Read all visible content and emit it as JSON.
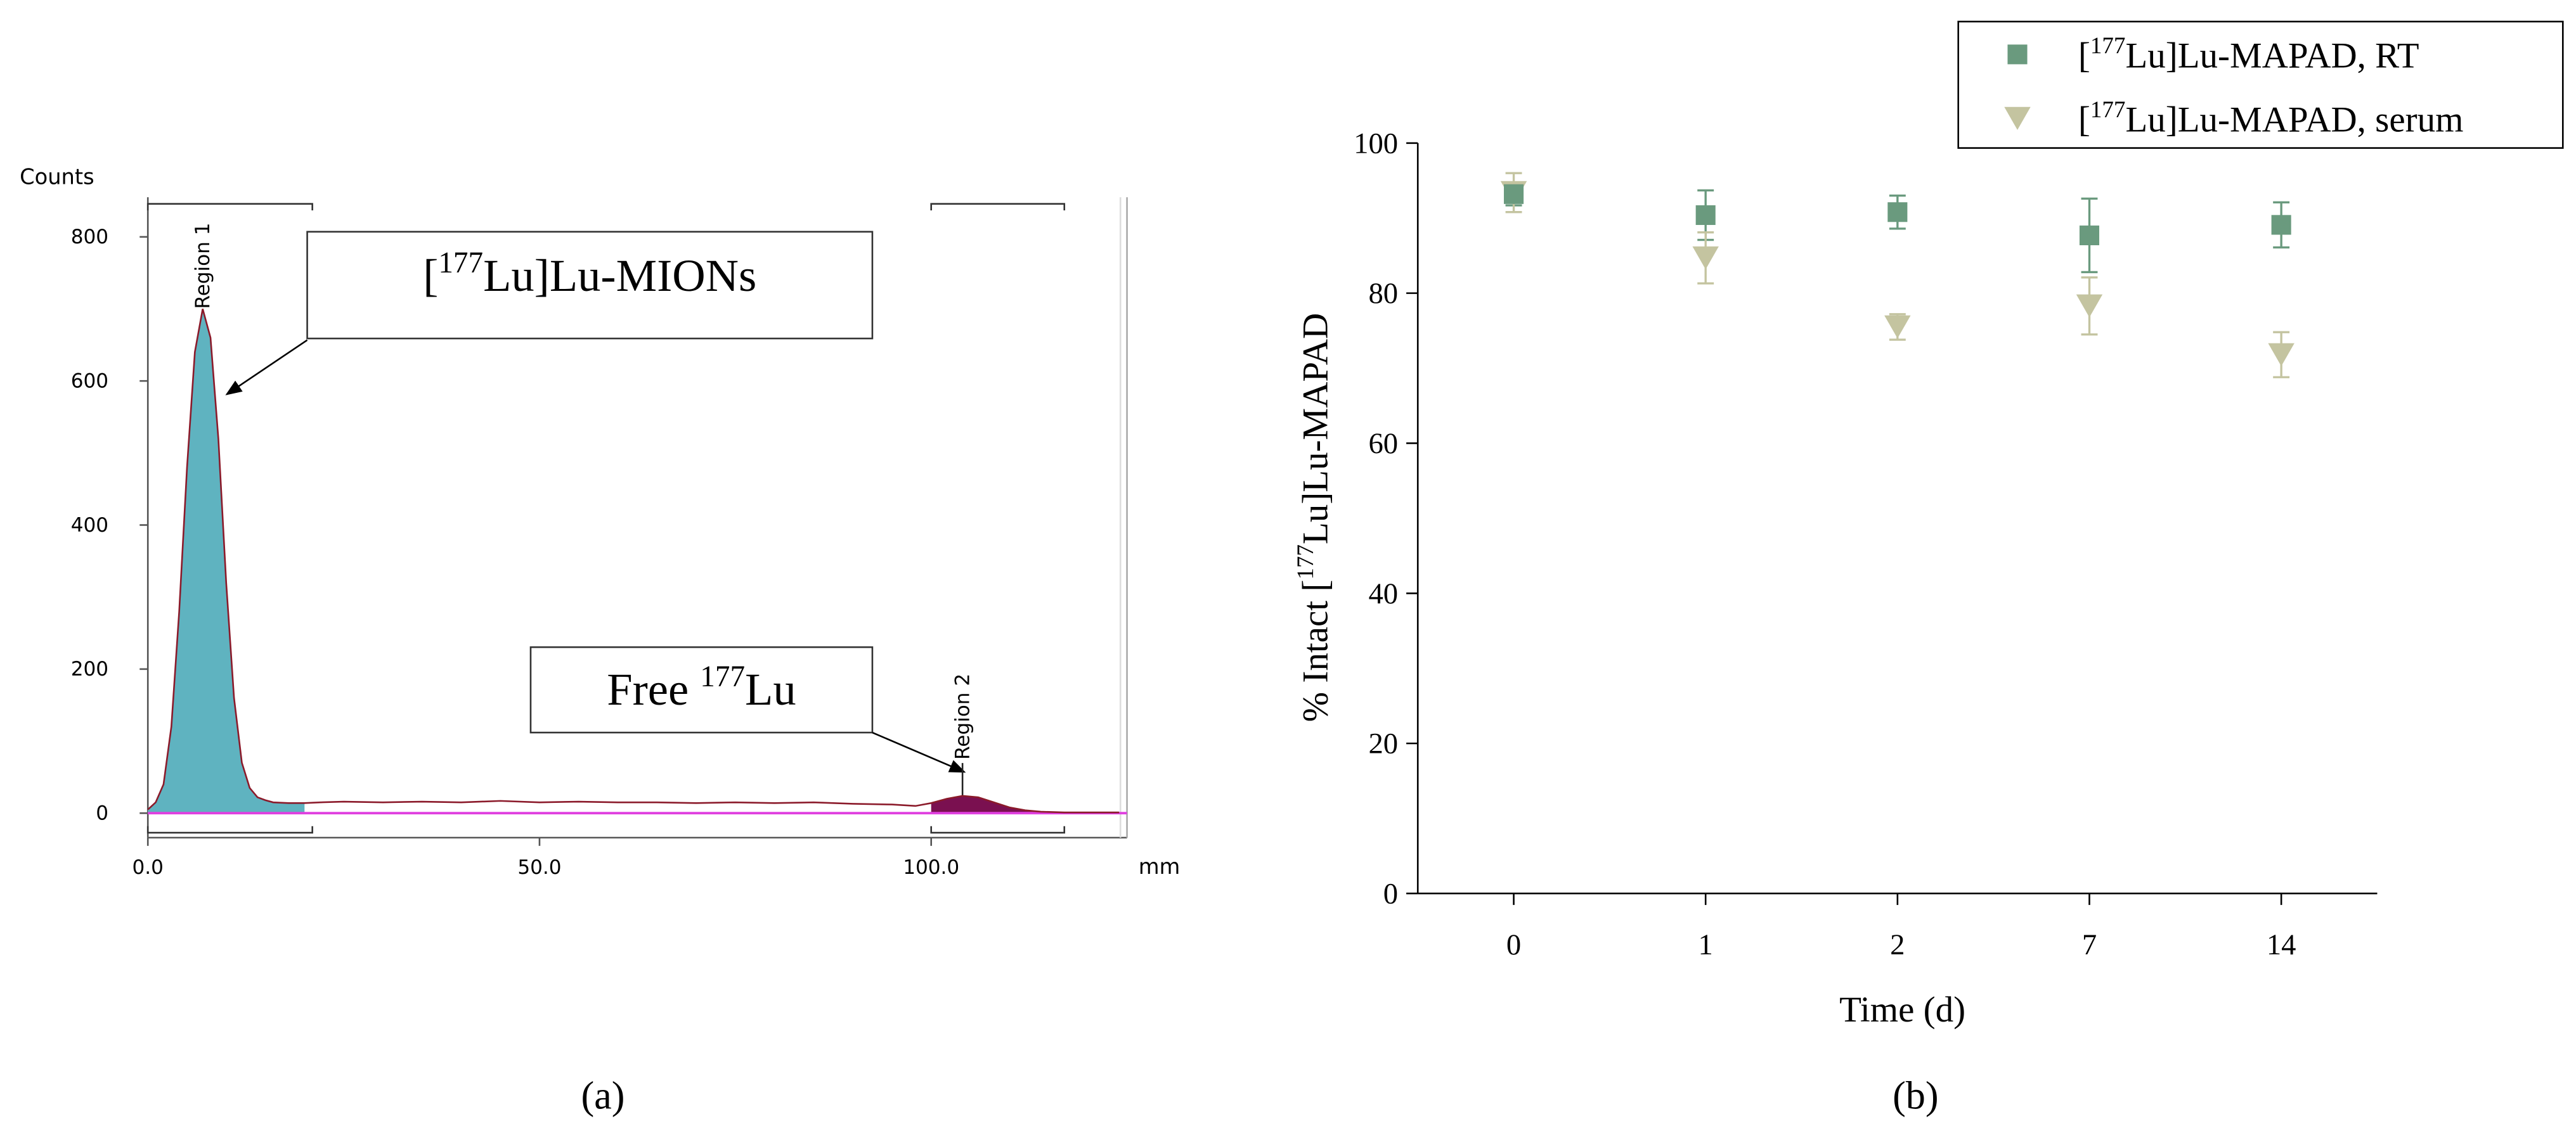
{
  "chart_data": [
    {
      "type": "line",
      "y_label": "Counts",
      "x_label": "mm",
      "panel_label": "(a)",
      "x": [
        0,
        1,
        2,
        3,
        4,
        5,
        6,
        7,
        8,
        9,
        10,
        11,
        12,
        13,
        14,
        15,
        16,
        18,
        20,
        22,
        25,
        30,
        35,
        40,
        45,
        50,
        55,
        60,
        65,
        70,
        75,
        80,
        85,
        90,
        95,
        98,
        100,
        102,
        104,
        106,
        108,
        110,
        112,
        114,
        117,
        120,
        124
      ],
      "series": [
        {
          "color": "#8b1a2a",
          "values": [
            5,
            15,
            40,
            120,
            280,
            480,
            640,
            700,
            660,
            520,
            320,
            160,
            70,
            35,
            22,
            18,
            15,
            14,
            14,
            15,
            16,
            15,
            16,
            15,
            17,
            15,
            16,
            15,
            15,
            14,
            15,
            14,
            15,
            13,
            12,
            10,
            14,
            20,
            24,
            22,
            15,
            8,
            4,
            2,
            1,
            1,
            1
          ]
        }
      ],
      "regions": [
        {
          "name": "Region 1",
          "range": [
            0,
            21
          ],
          "color": "#5fb3c0"
        },
        {
          "name": "Region 2",
          "range": [
            100,
            117
          ],
          "color": "#7a1050"
        }
      ],
      "baseline_color": "#e040e0",
      "annotations": [
        {
          "text": [
            "[",
            "177",
            "Lu]Lu-MIONs"
          ]
        },
        {
          "text": [
            "Free ",
            "177",
            "Lu"
          ]
        }
      ],
      "xlim": [
        0,
        125
      ],
      "ylim": [
        -34,
        855
      ],
      "xticks": [
        {
          "value": 0,
          "label": "0.0"
        },
        {
          "value": 50,
          "label": "50.0"
        },
        {
          "value": 100,
          "label": "100.0"
        }
      ],
      "yticks": [
        0,
        200,
        400,
        600,
        800
      ]
    },
    {
      "type": "scatter",
      "x_label": "Time (d)",
      "y_label": [
        "% Intact [",
        "177",
        "Lu]Lu-MAPAD"
      ],
      "panel_label": "(b)",
      "categories": [
        "0",
        "1",
        "2",
        "7",
        "14"
      ],
      "series": [
        {
          "name": [
            "[",
            "177",
            "Lu]Lu-MAPAD, RT"
          ],
          "marker": "square",
          "color": "#6a9a7e",
          "values": [
            93.2,
            90.4,
            90.8,
            87.7,
            89.1
          ],
          "errors": [
            1.5,
            3.3,
            2.2,
            4.9,
            3.0
          ]
        },
        {
          "name": [
            "[",
            "177",
            "Lu]Lu-MAPAD, serum"
          ],
          "marker": "triangle-down",
          "color": "#c4c4a0",
          "values": [
            93.4,
            84.7,
            75.5,
            78.3,
            71.8
          ],
          "errors": [
            2.6,
            3.4,
            1.7,
            3.8,
            3.0
          ]
        }
      ],
      "ylim": [
        0,
        100
      ],
      "yticks": [
        0,
        20,
        40,
        60,
        80,
        100
      ]
    }
  ]
}
